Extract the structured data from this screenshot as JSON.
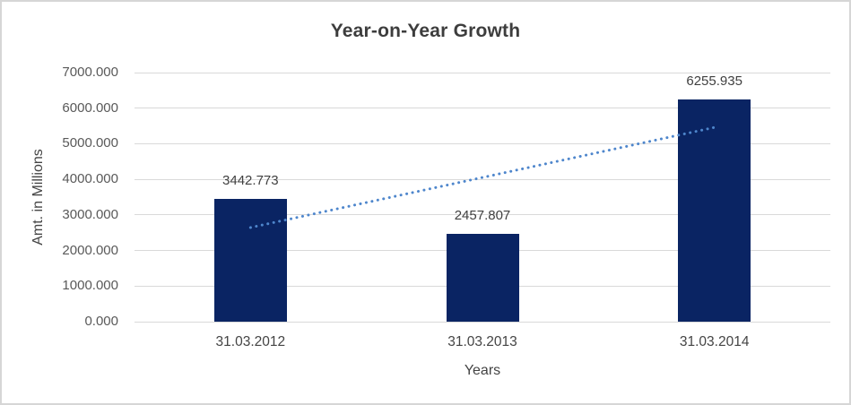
{
  "chart_data": {
    "type": "bar",
    "title": "Year-on-Year Growth",
    "xlabel": "Years",
    "ylabel": "Amt. in Millions",
    "categories": [
      "31.03.2012",
      "31.03.2013",
      "31.03.2014"
    ],
    "values": [
      3442.773,
      2457.807,
      6255.935
    ],
    "data_labels": [
      "3442.773",
      "2457.807",
      "6255.935"
    ],
    "ylim": [
      0,
      7000
    ],
    "ytick_step": 1000,
    "ytick_labels": [
      "0.000",
      "1000.000",
      "2000.000",
      "3000.000",
      "4000.000",
      "5000.000",
      "6000.000",
      "7000.000"
    ],
    "grid": true,
    "legend": "none",
    "trendline": {
      "type": "linear",
      "style": "dotted"
    },
    "colors": {
      "bar": "#0a2463",
      "trendline": "#4e86cc",
      "gridline": "#d9d9d9",
      "title_text": "#3d3d3d",
      "tick_text": "#595959",
      "data_label_text": "#404040",
      "frame_border": "#d6d6d6",
      "background": "#ffffff"
    }
  }
}
